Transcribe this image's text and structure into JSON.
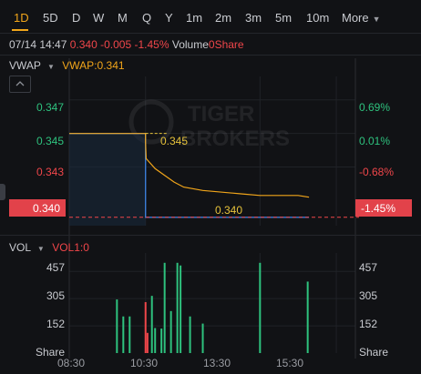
{
  "tabs": [
    "1D",
    "5D",
    "D",
    "W",
    "M",
    "Q",
    "Y",
    "1m",
    "2m",
    "3m",
    "5m",
    "10m",
    "More"
  ],
  "active_tab": "1D",
  "info": {
    "datetime": "07/14 14:47",
    "price": "0.340",
    "change": "-0.005",
    "change_pct": "-1.45%",
    "volume_label": "Volume",
    "volume_value": "0Share"
  },
  "indicator": {
    "name": "VWAP",
    "value_label": "VWAP:0.341"
  },
  "watermark": {
    "line1": "TIGER",
    "line2": "BROKERS"
  },
  "price_axis": {
    "left_labels": [
      "0.347",
      "0.345",
      "0.343"
    ],
    "right_labels": [
      "0.69%",
      "0.01%",
      "-0.68%"
    ],
    "current_price": "0.340",
    "current_pct": "-1.45%",
    "ref_price_label": "0.345",
    "last_price_label": "0.340"
  },
  "volume_panel": {
    "name": "VOL",
    "value_label": "VOL1:0",
    "left_labels": [
      "457",
      "305",
      "152",
      "Share"
    ],
    "right_labels": [
      "457",
      "305",
      "152",
      "Share"
    ]
  },
  "time_axis": [
    "08:30",
    "10:30",
    "13:30",
    "15:30"
  ],
  "colors": {
    "accent": "#f1a51a",
    "up": "#2ec27e",
    "down": "#f0464a",
    "price_line": "#3b7dd8",
    "background": "#111215"
  },
  "chart_data": {
    "type": "line",
    "price": {
      "x": [
        "08:30",
        "10:30",
        "10:30",
        "10:31",
        "10:45",
        "11:00",
        "11:15",
        "11:30",
        "12:00",
        "13:00",
        "13:30",
        "14:30",
        "14:47"
      ],
      "series": [
        {
          "name": "Price",
          "values": [
            0.345,
            0.345,
            0.34,
            0.34,
            0.34,
            0.34,
            0.34,
            0.34,
            0.34,
            0.34,
            0.34,
            0.34,
            0.34
          ]
        },
        {
          "name": "VWAP",
          "values": [
            0.345,
            0.345,
            0.3445,
            0.3435,
            0.3429,
            0.3425,
            0.3421,
            0.3418,
            0.3416,
            0.3414,
            0.3413,
            0.3413,
            0.3412
          ]
        }
      ],
      "ylim": [
        0.3395,
        0.3484
      ],
      "reference": 0.345
    },
    "volume": {
      "bars": [
        {
          "t": "09:45",
          "v": 300,
          "dir": "up"
        },
        {
          "t": "09:55",
          "v": 205,
          "dir": "up"
        },
        {
          "t": "10:05",
          "v": 205,
          "dir": "up"
        },
        {
          "t": "10:30",
          "v": 285,
          "dir": "down"
        },
        {
          "t": "10:33",
          "v": 113,
          "dir": "down"
        },
        {
          "t": "10:40",
          "v": 320,
          "dir": "up"
        },
        {
          "t": "10:45",
          "v": 140,
          "dir": "up"
        },
        {
          "t": "10:55",
          "v": 137,
          "dir": "up"
        },
        {
          "t": "11:00",
          "v": 505,
          "dir": "up"
        },
        {
          "t": "11:10",
          "v": 235,
          "dir": "up"
        },
        {
          "t": "11:20",
          "v": 505,
          "dir": "up"
        },
        {
          "t": "11:25",
          "v": 490,
          "dir": "up"
        },
        {
          "t": "11:40",
          "v": 205,
          "dir": "up"
        },
        {
          "t": "12:00",
          "v": 165,
          "dir": "up"
        },
        {
          "t": "13:30",
          "v": 505,
          "dir": "up"
        },
        {
          "t": "14:45",
          "v": 400,
          "dir": "up"
        }
      ],
      "ylim": [
        0,
        560
      ],
      "ticks": [
        152,
        305,
        457
      ]
    },
    "xlim": [
      "08:30",
      "16:00"
    ]
  }
}
